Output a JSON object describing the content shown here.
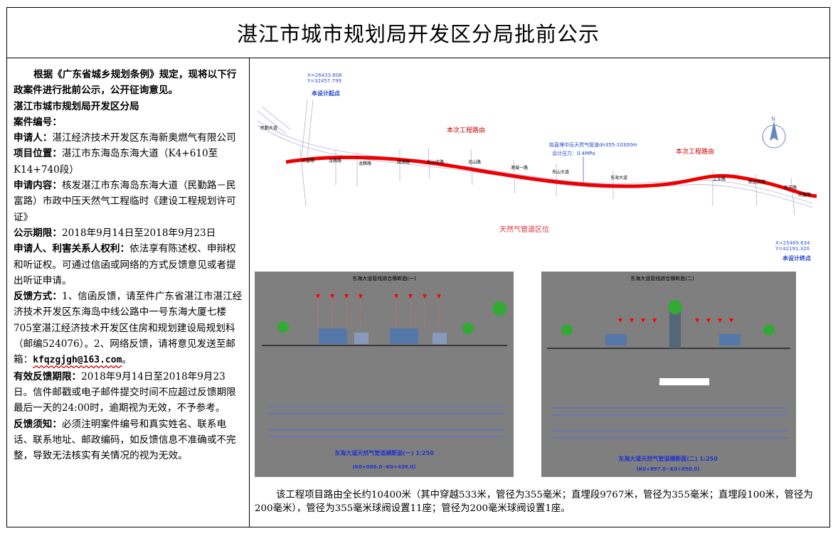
{
  "title": "湛江市城市规划局开发区分局批前公示",
  "left": {
    "intro": "根据《广东省城乡规划条例》规定，现将以下行政案件进行批前公示，公开征询意见。",
    "org": "湛江市城市规划局开发区分局",
    "case_label": "案件编号：",
    "applicant_label": "申请人：",
    "applicant": "湛江经济技术开发区东海新奥燃气有限公司",
    "location_label": "项目位置：",
    "location": "湛江市东海岛东海大道（K4+610至K14+740段）",
    "content_label": "申请内容：",
    "content": "核发湛江市东海岛东海大道（民勤路－民富路）市政中压天然气工程临时《建设工程规划许可证》",
    "period_label": "公示期限：",
    "period": "2018年9月14日至2018年9月23日",
    "rights_label": "申请人、利害关系人权利：",
    "rights": "依法享有陈述权、申辩权和听证权。可通过信函或网络的方式反馈意见或者提出听证申请。",
    "feedback_label": "反馈方式：",
    "feedback": "1、信函反馈，请至件广东省湛江市湛江经济技术开发区东海岛中线公路中一号东海大厦七楼705室湛江经济技术开发区住房和规划建设局规划科（邮编524076）。2、网络反馈，请将意见发送至邮箱：",
    "email": "kfqzgjgh@163.com",
    "email_tail": "。",
    "deadline_label": "有效反馈期限：",
    "deadline": "2018年9月14日至2018年9月23日。信件邮戳或电子邮件提交时间不应超过反馈期限最后一天的24:00时，逾期视为无效，不予参考。",
    "notice_label": "反馈须知：",
    "notice": "必须注明案件编号和真实姓名、联系电话、联系地址、邮政编码，如反馈信息不准确或不完整，导致无法核实有关情况的视为无效。"
  },
  "map": {
    "coord_start": "X=26433.808\nY=32457.799",
    "start_label": "本设计起点",
    "road_label_1": "本次工程路由",
    "road_label_2": "本次工程路由",
    "pipe_label": "拟直埋中压天然气管道dn355-10300m",
    "pressure_label": "设计压力：0.4MPa",
    "zone_label": "天然气管道区位",
    "coord_end": "X=25469.634\nY=42191.320",
    "end_label": "本设计终点",
    "north_label": "N"
  },
  "sections": {
    "sec1_top": "东海大道管线综合横断面(一)",
    "sec1_caption": "东海大道天然气管道横断面(一) 1:250",
    "sec1_range": "(K0+000.0~K0+436.0)",
    "sec2_top": "东海大道管线综合横断面(二)",
    "sec2_caption": "东海大道天然气管道横断面(二) 1:250",
    "sec2_range": "(K0+897.0~K0+650.0)"
  },
  "summary": "该工程项目路由全长约10400米（其中穿越533米，管径为355毫米；直埋段9767米，管径为355毫米；直埋段100米，管径为200毫米），管径为355毫米球阀设置11座；管径为200毫米球阀设置1座。"
}
